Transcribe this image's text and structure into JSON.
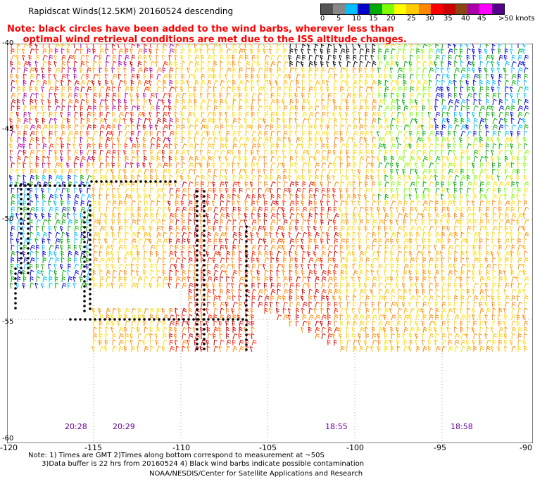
{
  "title": "Rapidscat Winds(12.5KM) 20160524 descending",
  "note_line1": "Note: black circles have been added to the wind barbs, wherever less than",
  "note_line2": "     optimal wind retrieval conditions are met due to the ISS altitude changes.",
  "scale": {
    "colors": [
      "#555555",
      "#888888",
      "#00bfff",
      "#0000cd",
      "#00aa00",
      "#7fff00",
      "#ffff00",
      "#ffcc00",
      "#ff8800",
      "#ff0000",
      "#cc0000",
      "#8b4513",
      "#aa00aa",
      "#ff00ff",
      "#550088"
    ],
    "labels": [
      "0",
      "5",
      "10",
      "15",
      "20",
      "25",
      "30",
      "35",
      "40",
      "45",
      ">50 knots"
    ]
  },
  "lat_labels": [
    "-40",
    "-45",
    "-50",
    "-55",
    "-60"
  ],
  "lon_labels": [
    "-120",
    "-115",
    "-110",
    "-105",
    "-100",
    "-95",
    "-90"
  ],
  "times": [
    "20:28",
    "20:29",
    "18:55",
    "18:58"
  ],
  "footnote_line1": "Note: 1) Times are GMT 2)Times along bottom correspond to measurement at ~50S",
  "footnote_line2": "      3)Data buffer is 22 hrs from 20160524 4) Black wind barbs indicate possible contamination",
  "credit": "NOAA/NESDIS/Center for Satellite Applications and Research"
}
